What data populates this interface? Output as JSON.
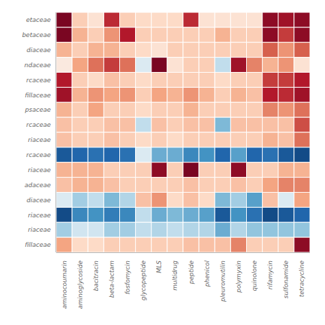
{
  "chart_data": {
    "type": "heatmap",
    "categories": [
      "aminocoumarin",
      "aminoglycoside",
      "bacitracin",
      "beta-lactam",
      "fosfomycin",
      "glycopeptide",
      "MLS",
      "multidrug",
      "peptide",
      "phenicol",
      "pleuromutilin",
      "polymyxin",
      "quinolone",
      "rifamycin",
      "sulfonamide",
      "tetracycline"
    ],
    "rows": [
      "etaceae",
      "betaceae",
      "diaceae",
      "ndaceae",
      "rcaceae",
      "fillaceae",
      "psaceae",
      "rcaceae",
      "riaceae",
      "rcaceae",
      "riaceae",
      "adaceae",
      "diaceae",
      "riaceae",
      "riaceae",
      "fillaceae"
    ],
    "cells": [
      [
        0.95,
        0.25,
        0.15,
        0.75,
        0.25,
        0.2,
        0.2,
        0.2,
        0.75,
        0.15,
        0.15,
        0.15,
        0.15,
        0.9,
        0.85,
        0.9
      ],
      [
        0.95,
        0.35,
        0.25,
        0.45,
        0.8,
        0.25,
        0.25,
        0.25,
        0.25,
        0.25,
        0.35,
        0.25,
        0.25,
        0.9,
        0.7,
        0.9
      ],
      [
        0.35,
        0.25,
        0.35,
        0.35,
        0.25,
        0.2,
        0.15,
        0.25,
        0.25,
        0.25,
        0.25,
        0.25,
        0.25,
        0.6,
        0.45,
        0.6
      ],
      [
        0.1,
        0.4,
        0.55,
        0.7,
        0.55,
        -0.15,
        0.95,
        0.15,
        0.25,
        0.25,
        -0.25,
        0.85,
        0.5,
        0.35,
        0.45,
        0.15
      ],
      [
        0.8,
        0.25,
        0.2,
        0.3,
        0.25,
        0.2,
        0.25,
        0.25,
        0.25,
        0.25,
        0.2,
        0.25,
        0.25,
        0.7,
        0.7,
        0.8
      ],
      [
        0.85,
        0.35,
        0.45,
        0.4,
        0.45,
        0.25,
        0.4,
        0.35,
        0.45,
        0.35,
        0.25,
        0.35,
        0.3,
        0.8,
        0.75,
        0.85
      ],
      [
        0.35,
        0.25,
        0.4,
        0.25,
        0.25,
        0.2,
        0.25,
        0.25,
        0.35,
        0.25,
        0.25,
        0.25,
        0.25,
        0.5,
        0.45,
        0.55
      ],
      [
        0.3,
        0.25,
        0.25,
        0.3,
        0.3,
        -0.25,
        0.3,
        0.25,
        0.3,
        0.3,
        -0.45,
        0.3,
        0.3,
        0.3,
        0.3,
        0.65
      ],
      [
        0.3,
        0.25,
        0.25,
        0.3,
        0.25,
        0.2,
        0.25,
        0.2,
        0.25,
        0.25,
        0.25,
        0.25,
        0.25,
        0.35,
        0.3,
        0.55
      ],
      [
        -0.85,
        -0.8,
        -0.75,
        -0.8,
        -0.75,
        -0.15,
        -0.5,
        -0.5,
        -0.65,
        -0.6,
        -0.8,
        -0.55,
        -0.8,
        -0.75,
        -0.85,
        -0.9
      ],
      [
        0.35,
        0.35,
        0.35,
        0.25,
        0.25,
        0.25,
        0.9,
        0.25,
        0.95,
        0.25,
        0.25,
        0.9,
        0.25,
        0.25,
        0.35,
        0.35
      ],
      [
        0.3,
        0.35,
        0.35,
        0.3,
        0.25,
        0.25,
        0.25,
        0.25,
        0.3,
        0.25,
        0.25,
        0.3,
        0.25,
        0.4,
        0.5,
        0.5
      ],
      [
        -0.15,
        -0.35,
        -0.25,
        -0.45,
        -0.3,
        0.3,
        0.45,
        0.2,
        0.3,
        0.2,
        -0.45,
        -0.35,
        -0.55,
        0.3,
        -0.15,
        0.4
      ],
      [
        -0.9,
        -0.65,
        -0.6,
        -0.7,
        -0.65,
        -0.25,
        -0.5,
        -0.45,
        -0.5,
        -0.55,
        -0.85,
        -0.6,
        -0.75,
        -0.9,
        -0.85,
        -0.8
      ],
      [
        -0.35,
        -0.2,
        -0.2,
        -0.35,
        -0.35,
        -0.25,
        -0.3,
        -0.25,
        -0.3,
        -0.3,
        -0.5,
        -0.3,
        -0.4,
        -0.4,
        -0.4,
        -0.4
      ],
      [
        0.4,
        0.2,
        0.2,
        0.25,
        0.25,
        0.25,
        0.25,
        0.25,
        0.3,
        0.3,
        0.3,
        0.5,
        0.25,
        0.25,
        0.25,
        0.9
      ]
    ],
    "color_range": [
      -1.0,
      1.0
    ]
  }
}
